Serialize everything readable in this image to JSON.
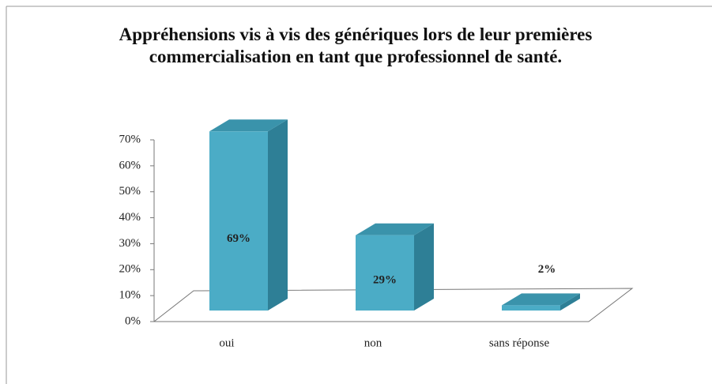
{
  "chart_data": {
    "type": "bar3d",
    "title": "Appréhensions vis à vis des génériques lors de leur premières commercialisation en tant que professionnel de santé.",
    "categories": [
      "oui",
      "non",
      "sans réponse"
    ],
    "values": [
      69,
      29,
      2
    ],
    "value_labels": [
      "69%",
      "29%",
      "2%"
    ],
    "color": "#4bacc6",
    "ylim": [
      0,
      70
    ],
    "yticks": [
      {
        "value": 0,
        "label": "0%"
      },
      {
        "value": 10,
        "label": "10%"
      },
      {
        "value": 20,
        "label": "20%"
      },
      {
        "value": 30,
        "label": "30%"
      },
      {
        "value": 40,
        "label": "40%"
      },
      {
        "value": 50,
        "label": "50%"
      },
      {
        "value": 60,
        "label": "60%"
      },
      {
        "value": 70,
        "label": "70%"
      }
    ],
    "grid": false
  }
}
